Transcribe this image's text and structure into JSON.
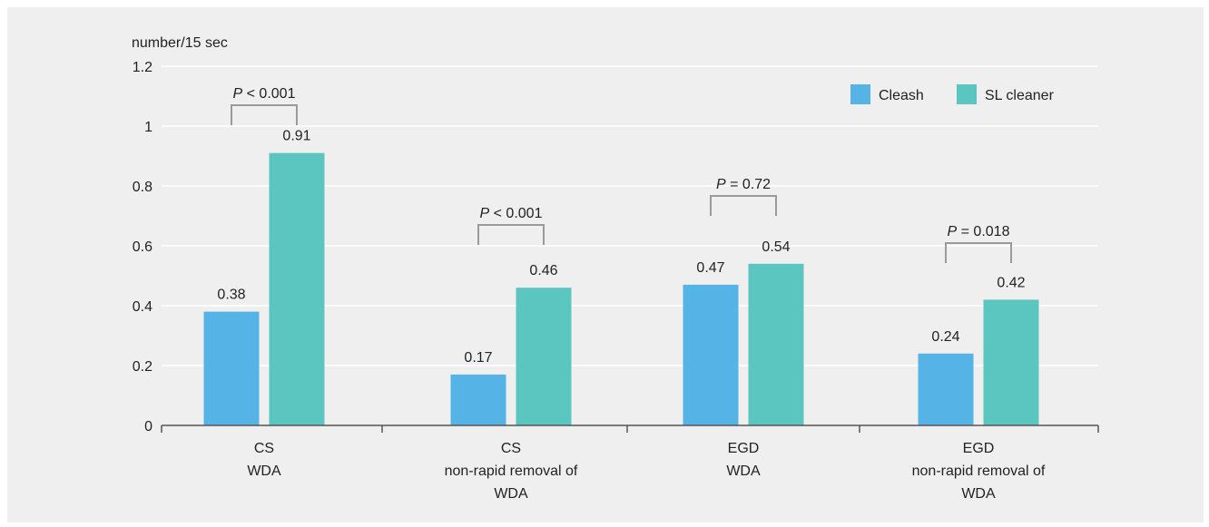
{
  "chart_data": {
    "type": "bar",
    "ylabel": "number/15 sec",
    "ylim": [
      0,
      1.2
    ],
    "yticks": [
      "0",
      "0.2",
      "0.4",
      "0.6",
      "0.8",
      "1",
      "1.2"
    ],
    "grid": true,
    "legend_position": "top-right",
    "categories": [
      [
        "CS",
        "WDA"
      ],
      [
        "CS",
        "non-rapid removal of",
        "WDA"
      ],
      [
        "EGD",
        "WDA"
      ],
      [
        "EGD",
        "non-rapid removal of",
        "WDA"
      ]
    ],
    "series": [
      {
        "name": "Cleash",
        "values": [
          0.38,
          0.17,
          0.47,
          0.24
        ],
        "labels": [
          "0.38",
          "0.17",
          "0.47",
          "0.24"
        ]
      },
      {
        "name": "SL cleaner",
        "values": [
          0.91,
          0.46,
          0.54,
          0.42
        ],
        "labels": [
          "0.91",
          "0.46",
          "0.54",
          "0.42"
        ]
      }
    ],
    "annotations": [
      {
        "prefix": "P",
        "text": " < 0.001"
      },
      {
        "prefix": "P",
        "text": " < 0.001"
      },
      {
        "prefix": "P",
        "text": " = 0.72"
      },
      {
        "prefix": "P",
        "text": " = 0.018"
      }
    ],
    "colors": {
      "Cleash": "#55b3e6",
      "SL cleaner": "#5bc6bf",
      "grid": "#ffffff",
      "axis": "#555555",
      "bracket": "#9a9a9a"
    }
  }
}
